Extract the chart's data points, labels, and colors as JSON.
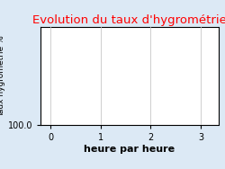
{
  "title": "Evolution du taux d'hygrométrie",
  "title_color": "#ff0000",
  "ylabel": "Taux hygrométrie %",
  "xlabel": "heure par heure",
  "background_color": "#dce9f5",
  "plot_bg_color": "#ffffff",
  "xlim": [
    -0.2,
    3.35
  ],
  "ylim_bottom_label": "100.0",
  "xticks": [
    0,
    1,
    2,
    3
  ],
  "grid_color": "#c8c8c8",
  "title_fontsize": 9.5,
  "xlabel_fontsize": 8,
  "ylabel_fontsize": 6.5
}
